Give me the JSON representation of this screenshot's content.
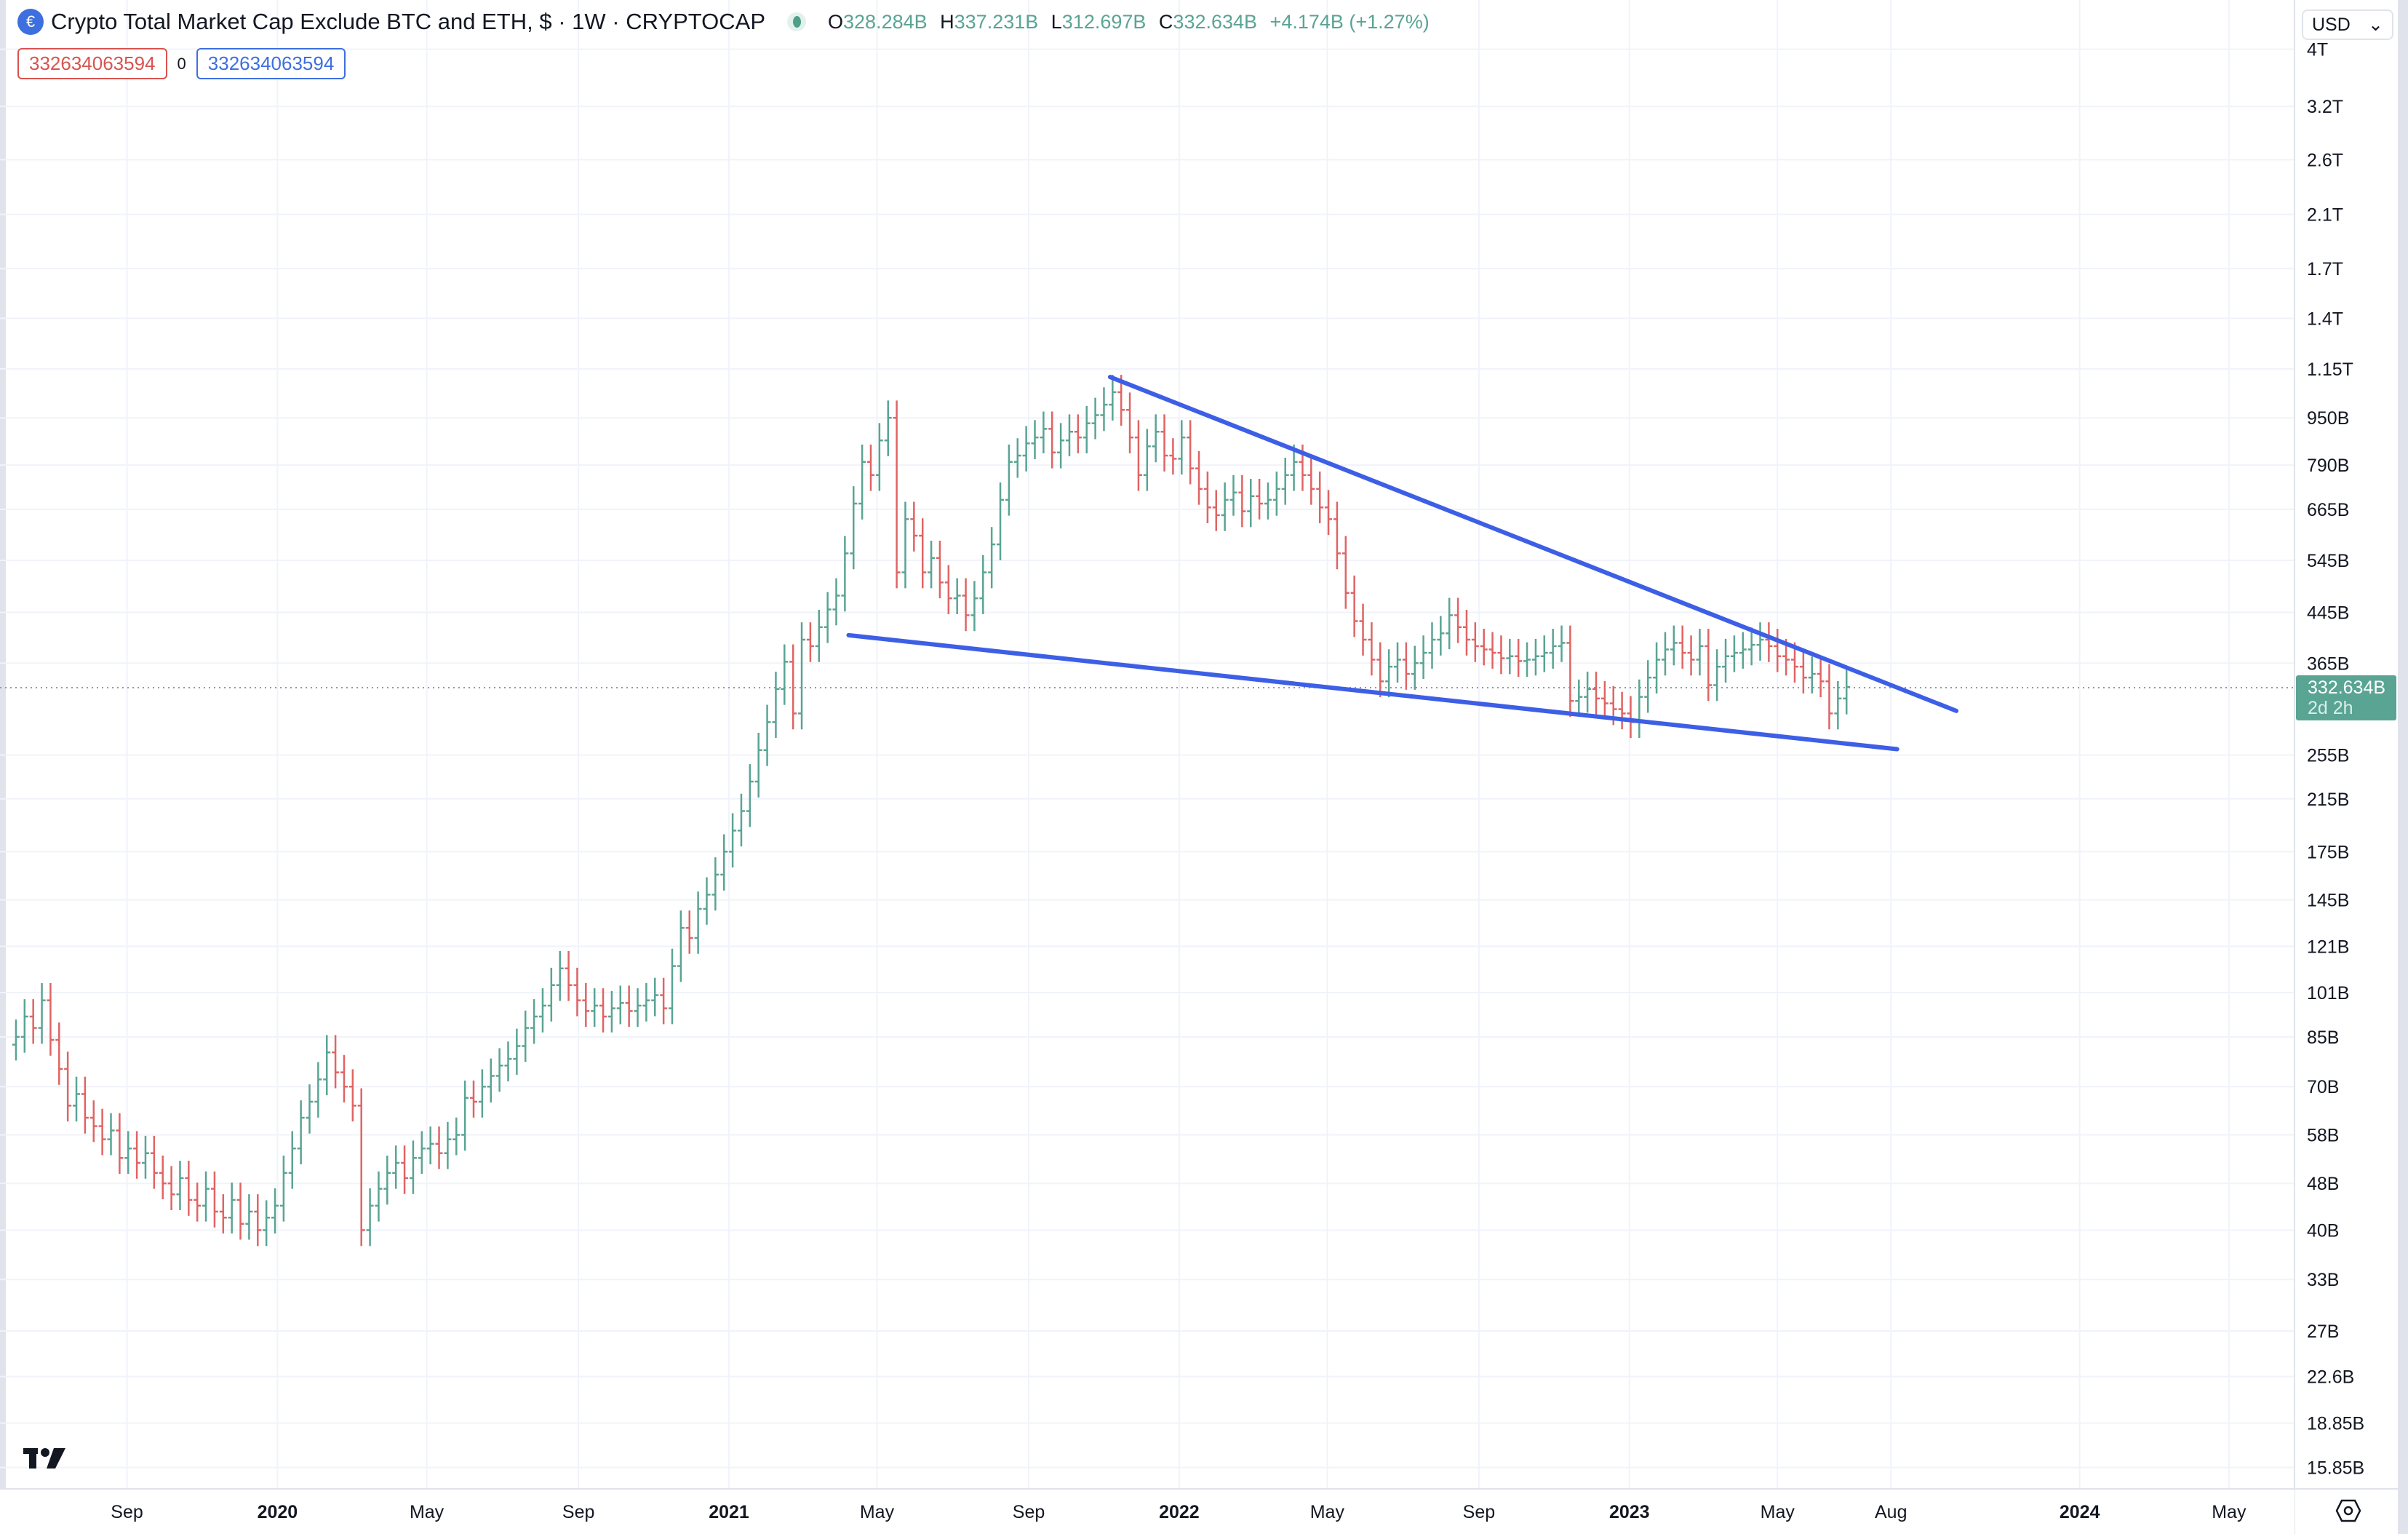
{
  "header": {
    "title": "Crypto Total Market Cap Exclude BTC and ETH, $ · 1W · CRYPTOCAP",
    "logo_icon": "cryptocap-logo-icon",
    "ohlc": {
      "o_label": "O",
      "o": "328.284B",
      "h_label": "H",
      "h": "337.231B",
      "l_label": "L",
      "l": "312.697B",
      "c_label": "C",
      "c": "332.634B",
      "change": "+4.174B (+1.27%)"
    },
    "box_left": "332634063594",
    "box_mid": "0",
    "box_right": "332634063594"
  },
  "currency": "USD",
  "current_price": {
    "value": "332.634B",
    "countdown": "2d 2h"
  },
  "colors": {
    "up": "#5aa494",
    "down": "#e06464",
    "trendline": "#3d5fe6",
    "grid": "#f0f3fa",
    "price_tag": "#5aa494"
  },
  "chart_data": {
    "type": "ohlc",
    "interval": "1W",
    "scale": "log",
    "grid": true,
    "start_week": "2019-06-03",
    "unit": "B USD",
    "closes": [
      85,
      92,
      88,
      98,
      84,
      75,
      65,
      68,
      62,
      60,
      57,
      59,
      53,
      55,
      52,
      54,
      50,
      48,
      46,
      49,
      45,
      44,
      47,
      43,
      42,
      45,
      41,
      43,
      40,
      42,
      44,
      50,
      55,
      62,
      66,
      72,
      80,
      74,
      70,
      65,
      40,
      44,
      47,
      50,
      52,
      49,
      53,
      55,
      56,
      54,
      57,
      58,
      67,
      66,
      70,
      73,
      76,
      78,
      82,
      88,
      92,
      96,
      104,
      111,
      104,
      98,
      94,
      96,
      92,
      95,
      97,
      94,
      96,
      98,
      100,
      95,
      112,
      130,
      125,
      140,
      148,
      160,
      175,
      190,
      205,
      230,
      260,
      290,
      330,
      367,
      300,
      400,
      390,
      420,
      450,
      475,
      560,
      680,
      800,
      760,
      870,
      950,
      520,
      640,
      600,
      520,
      550,
      500,
      470,
      475,
      440,
      470,
      520,
      580,
      690,
      800,
      820,
      860,
      880,
      910,
      830,
      870,
      900,
      880,
      930,
      960,
      1000,
      1050,
      980,
      880,
      760,
      850,
      900,
      820,
      810,
      880,
      780,
      720,
      670,
      650,
      690,
      710,
      660,
      700,
      680,
      690,
      720,
      760,
      800,
      760,
      720,
      670,
      640,
      560,
      480,
      430,
      400,
      370,
      340,
      360,
      370,
      350,
      365,
      380,
      400,
      410,
      440,
      420,
      400,
      390,
      385,
      380,
      372,
      375,
      368,
      370,
      375,
      380,
      390,
      395,
      315,
      320,
      330,
      318,
      312,
      305,
      300,
      290,
      320,
      345,
      370,
      385,
      395,
      380,
      370,
      390,
      335,
      360,
      375,
      380,
      385,
      392,
      400,
      390,
      375,
      370,
      360,
      345,
      350,
      340,
      300,
      318,
      332.634
    ],
    "y_ticks": [
      "4T",
      "3.2T",
      "2.6T",
      "2.1T",
      "1.7T",
      "1.4T",
      "1.15T",
      "950B",
      "790B",
      "665B",
      "545B",
      "445B",
      "365B",
      "255B",
      "215B",
      "175B",
      "145B",
      "121B",
      "101B",
      "85B",
      "70B",
      "58B",
      "48B",
      "40B",
      "33B",
      "27B",
      "22.6B",
      "18.85B",
      "15.85B"
    ],
    "y_tick_values": [
      4000,
      3200,
      2600,
      2100,
      1700,
      1400,
      1150,
      950,
      790,
      665,
      545,
      445,
      365,
      255,
      215,
      175,
      145,
      121,
      101,
      85,
      70,
      58,
      48,
      40,
      33,
      27,
      22.6,
      18.85,
      15.85
    ],
    "x_ticks": [
      {
        "label": "Sep",
        "date": "2019-09-01",
        "bold": false
      },
      {
        "label": "2020",
        "date": "2020-01-01",
        "bold": true
      },
      {
        "label": "May",
        "date": "2020-05-01",
        "bold": false
      },
      {
        "label": "Sep",
        "date": "2020-09-01",
        "bold": false
      },
      {
        "label": "2021",
        "date": "2021-01-01",
        "bold": true
      },
      {
        "label": "May",
        "date": "2021-05-01",
        "bold": false
      },
      {
        "label": "Sep",
        "date": "2021-09-01",
        "bold": false
      },
      {
        "label": "2022",
        "date": "2022-01-01",
        "bold": true
      },
      {
        "label": "May",
        "date": "2022-05-01",
        "bold": false
      },
      {
        "label": "Sep",
        "date": "2022-09-01",
        "bold": false
      },
      {
        "label": "2023",
        "date": "2023-01-01",
        "bold": true
      },
      {
        "label": "May",
        "date": "2023-05-01",
        "bold": false
      },
      {
        "label": "Aug",
        "date": "2023-08-01",
        "bold": false
      },
      {
        "label": "2024",
        "date": "2024-01-01",
        "bold": true
      },
      {
        "label": "May",
        "date": "2024-05-01",
        "bold": false
      }
    ],
    "trendlines": [
      {
        "name": "upper",
        "start": {
          "date": "2021-11-06",
          "value": 1114
        },
        "end": {
          "date": "2023-09-23",
          "value": 303
        }
      },
      {
        "name": "lower",
        "start": {
          "date": "2021-04-08",
          "value": 407
        },
        "end": {
          "date": "2023-08-06",
          "value": 261
        }
      }
    ]
  }
}
